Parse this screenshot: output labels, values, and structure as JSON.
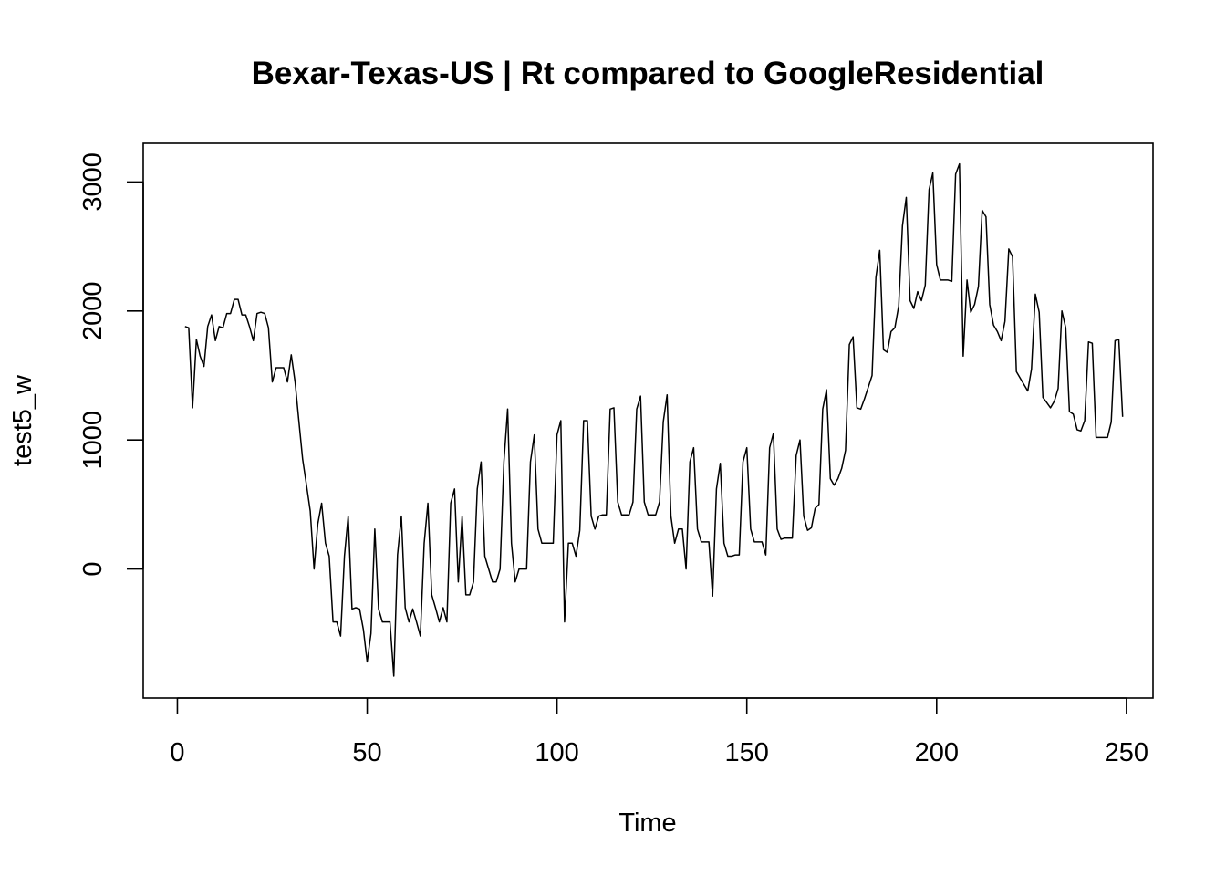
{
  "chart_data": {
    "type": "line",
    "title": "Bexar-Texas-US | Rt compared to GoogleResidential",
    "xlabel": "Time",
    "ylabel": "test5_w",
    "xlim": [
      -9,
      257
    ],
    "ylim": [
      -1000,
      3300
    ],
    "x_ticks": [
      0,
      50,
      100,
      150,
      200,
      250
    ],
    "y_ticks": [
      0,
      1000,
      2000,
      3000
    ],
    "grid": false,
    "legend": "none",
    "series": [
      {
        "color": "#000000",
        "x_start": 2,
        "values": [
          1880,
          1870,
          1250,
          1780,
          1650,
          1570,
          1880,
          1970,
          1770,
          1880,
          1870,
          1980,
          1980,
          2090,
          2090,
          1970,
          1970,
          1880,
          1770,
          1980,
          1990,
          1980,
          1870,
          1450,
          1560,
          1560,
          1560,
          1450,
          1660,
          1450,
          1150,
          850,
          650,
          450,
          0,
          350,
          510,
          200,
          100,
          -410,
          -410,
          -520,
          100,
          410,
          -310,
          -300,
          -310,
          -470,
          -720,
          -500,
          310,
          -310,
          -410,
          -410,
          -410,
          -830,
          110,
          410,
          -300,
          -410,
          -310,
          -410,
          -520,
          200,
          510,
          -200,
          -300,
          -410,
          -300,
          -410,
          510,
          620,
          -100,
          410,
          -200,
          -200,
          -100,
          620,
          830,
          100,
          0,
          -100,
          -100,
          0,
          830,
          1240,
          200,
          -100,
          0,
          0,
          0,
          830,
          1040,
          310,
          200,
          200,
          200,
          200,
          1040,
          1150,
          -410,
          200,
          200,
          100,
          300,
          1150,
          1150,
          410,
          310,
          410,
          420,
          420,
          1240,
          1250,
          520,
          420,
          420,
          420,
          520,
          1240,
          1340,
          520,
          420,
          420,
          420,
          520,
          1140,
          1350,
          410,
          200,
          310,
          310,
          0,
          830,
          940,
          310,
          210,
          210,
          210,
          -210,
          620,
          820,
          200,
          100,
          100,
          110,
          110,
          830,
          940,
          310,
          210,
          210,
          210,
          110,
          940,
          1050,
          310,
          230,
          240,
          240,
          240,
          880,
          1000,
          410,
          300,
          320,
          470,
          500,
          1240,
          1390,
          700,
          650,
          700,
          780,
          920,
          1740,
          1800,
          1250,
          1240,
          1320,
          1410,
          1500,
          2260,
          2470,
          1700,
          1680,
          1840,
          1870,
          2040,
          2660,
          2880,
          2080,
          2020,
          2150,
          2080,
          2200,
          2940,
          3070,
          2360,
          2240,
          2240,
          2240,
          2230,
          3060,
          3140,
          1650,
          2240,
          1990,
          2050,
          2190,
          2780,
          2730,
          2050,
          1890,
          1840,
          1770,
          1920,
          2480,
          2420,
          1530,
          1480,
          1430,
          1380,
          1550,
          2130,
          1990,
          1330,
          1290,
          1250,
          1300,
          1400,
          2000,
          1870,
          1220,
          1200,
          1080,
          1070,
          1150,
          1760,
          1750,
          1020,
          1020,
          1020,
          1020,
          1140,
          1770,
          1780,
          1180
        ]
      }
    ]
  }
}
